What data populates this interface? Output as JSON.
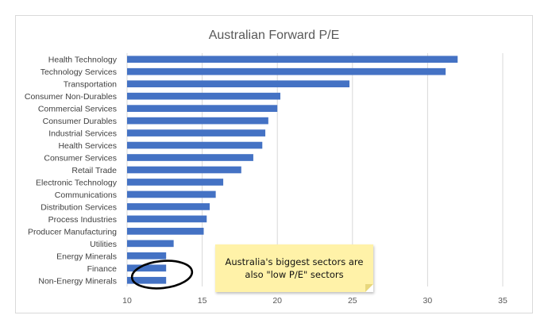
{
  "chart_data": {
    "type": "bar",
    "orientation": "horizontal",
    "title": "Australian Forward P/E",
    "xlabel": "",
    "ylabel": "",
    "xlim": [
      10,
      35
    ],
    "xticks": [
      10,
      15,
      20,
      25,
      30,
      35
    ],
    "grid": true,
    "categories": [
      "Health Technology",
      "Technology Services",
      "Transportation",
      "Consumer Non-Durables",
      "Commercial Services",
      "Consumer Durables",
      "Industrial Services",
      "Health Services",
      "Consumer Services",
      "Retail Trade",
      "Electronic Technology",
      "Communications",
      "Distribution Services",
      "Process Industries",
      "Producer Manufacturing",
      "Utilities",
      "Energy Minerals",
      "Finance",
      "Non-Energy Minerals"
    ],
    "values": [
      32.0,
      31.2,
      24.8,
      20.2,
      20.0,
      19.4,
      19.2,
      19.0,
      18.4,
      17.6,
      16.4,
      15.9,
      15.5,
      15.3,
      15.1,
      13.1,
      12.6,
      12.6,
      12.6
    ],
    "bar_color": "#4472c4",
    "annotation": {
      "line1": "Australia's biggest sectors are",
      "line2": "also \"low P/E\" sectors",
      "background": "#fff2a8"
    }
  }
}
